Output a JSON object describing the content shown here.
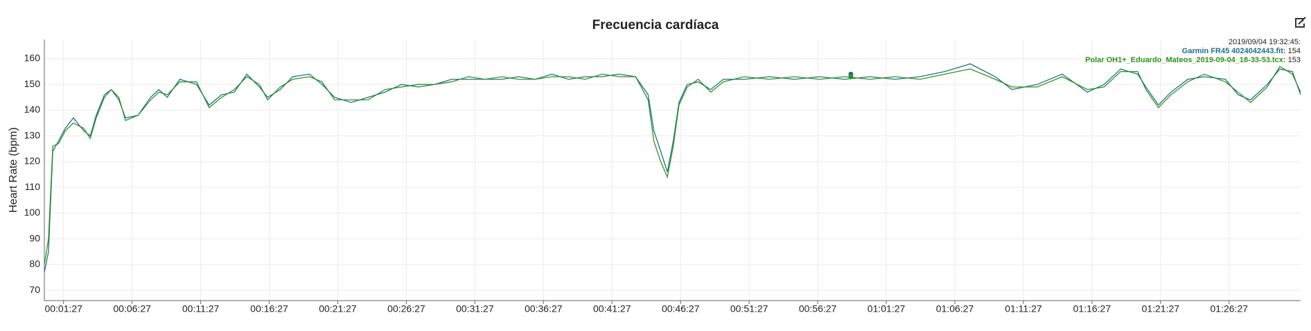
{
  "chart_data": {
    "type": "line",
    "title": "Frecuencia cardíaca",
    "y_label": "Heart Rate (bpm)",
    "x": [
      3,
      21,
      40,
      65,
      95,
      130,
      175,
      204,
      230,
      266,
      296,
      329,
      358,
      413,
      468,
      504,
      541,
      596,
      669,
      724,
      779,
      834,
      889,
      944,
      980,
      1035,
      1090,
      1163,
      1218,
      1273,
      1346,
      1420,
      1493,
      1566,
      1639,
      1712,
      1785,
      1858,
      1932,
      2005,
      2078,
      2151,
      2224,
      2297,
      2370,
      2444,
      2517,
      2590,
      2645,
      2670,
      2700,
      2729,
      2755,
      2780,
      2816,
      2864,
      2919,
      2974,
      3065,
      3175,
      3285,
      3395,
      3505,
      3615,
      3725,
      3834,
      3944,
      4054,
      4164,
      4237,
      4347,
      4457,
      4567,
      4640,
      4713,
      4787,
      4823,
      4878,
      4933,
      5006,
      5079,
      5171,
      5226,
      5281,
      5354,
      5409,
      5464,
      5500
    ],
    "series": [
      {
        "name": "Garmin FR45 4024042443.fit",
        "color": "#1f6f8b",
        "values": [
          77,
          85,
          124,
          128,
          133,
          137,
          132,
          130,
          138,
          146,
          148,
          144,
          137,
          138,
          145,
          148,
          145,
          152,
          150,
          142,
          146,
          147,
          154,
          149,
          145,
          148,
          153,
          154,
          150,
          145,
          143,
          145,
          147,
          150,
          149,
          150,
          152,
          152,
          152,
          152,
          153,
          152,
          154,
          152,
          153,
          153,
          154,
          153,
          146,
          132,
          124,
          116,
          128,
          143,
          150,
          151,
          148,
          152,
          152,
          153,
          152,
          153,
          152,
          153,
          152,
          153,
          155,
          158,
          153,
          148,
          150,
          154,
          147,
          150,
          156,
          154,
          149,
          142,
          147,
          152,
          153,
          152,
          146,
          144,
          150,
          156,
          155,
          146
        ]
      },
      {
        "name": "Polar OH1+_Eduardo_Mateos_2019-09-04_18-33-53.tcx",
        "color": "#2f9418",
        "values": [
          80,
          90,
          126,
          127,
          132,
          135,
          133,
          129,
          137,
          145,
          148,
          145,
          136,
          138,
          144,
          147,
          146,
          151,
          151,
          141,
          145,
          148,
          153,
          150,
          144,
          149,
          152,
          153,
          151,
          144,
          144,
          144,
          148,
          149,
          150,
          150,
          151,
          153,
          152,
          153,
          152,
          152,
          153,
          153,
          152,
          154,
          153,
          153,
          144,
          128,
          120,
          114,
          126,
          142,
          149,
          152,
          147,
          151,
          153,
          152,
          153,
          152,
          153,
          152,
          153,
          152,
          154,
          156,
          152,
          149,
          149,
          153,
          148,
          149,
          155,
          155,
          148,
          141,
          146,
          151,
          154,
          151,
          147,
          143,
          149,
          157,
          154,
          147
        ]
      }
    ],
    "xlim": [
      3,
      5500
    ],
    "ylim": [
      66,
      167.5
    ],
    "yticks": [
      70,
      80,
      90,
      100,
      110,
      120,
      130,
      140,
      150,
      160
    ],
    "xticks": [
      {
        "value": 87,
        "label": "00:01:27"
      },
      {
        "value": 387,
        "label": "00:06:27"
      },
      {
        "value": 687,
        "label": "00:11:27"
      },
      {
        "value": 987,
        "label": "00:16:27"
      },
      {
        "value": 1287,
        "label": "00:21:27"
      },
      {
        "value": 1587,
        "label": "00:26:27"
      },
      {
        "value": 1887,
        "label": "00:31:27"
      },
      {
        "value": 2187,
        "label": "00:36:27"
      },
      {
        "value": 2487,
        "label": "00:41:27"
      },
      {
        "value": 2787,
        "label": "00:46:27"
      },
      {
        "value": 3087,
        "label": "00:51:27"
      },
      {
        "value": 3387,
        "label": "00:56:27"
      },
      {
        "value": 3687,
        "label": "01:01:27"
      },
      {
        "value": 3987,
        "label": "01:06:27"
      },
      {
        "value": 4287,
        "label": "01:11:27"
      },
      {
        "value": 4587,
        "label": "01:16:27"
      },
      {
        "value": 4887,
        "label": "01:21:27"
      },
      {
        "value": 5187,
        "label": "01:26:27"
      }
    ],
    "grid": true,
    "tooltip": {
      "x": 3532,
      "time": "2019/09/04 19:32:45:",
      "entries": [
        {
          "label": "Garmin FR45 4024042443.fit:",
          "value": 154
        },
        {
          "label": "Polar OH1+_Eduardo_Mateos_2019-09-04_18-33-53.tcx:",
          "value": 153
        }
      ]
    }
  }
}
